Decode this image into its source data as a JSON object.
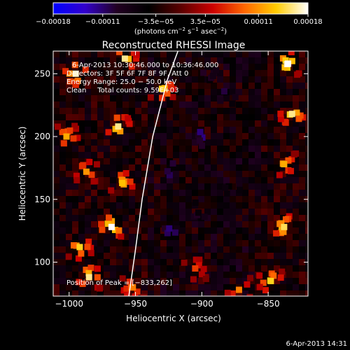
{
  "colorbar": {
    "ticks": [
      {
        "value": -0.00018,
        "label": "−0.00018"
      },
      {
        "value": -0.00011,
        "label": "−0.00011"
      },
      {
        "value": -3.5e-05,
        "label": "−3.5e−05"
      },
      {
        "value": 3.5e-05,
        "label": "3.5e−05"
      },
      {
        "value": 0.00011,
        "label": "0.00011"
      },
      {
        "value": 0.00018,
        "label": "0.00018"
      }
    ],
    "range": [
      -0.00018,
      0.00018
    ],
    "unit_label": "(photons cm",
    "unit_exp1": "−2",
    "unit_mid": " s",
    "unit_exp2": "−1",
    "unit_mid2": " asec",
    "unit_exp3": "−2",
    "unit_end": ")",
    "colors": [
      "#0000ff",
      "#3300cc",
      "#220022",
      "#000000",
      "#5a0000",
      "#cc0000",
      "#ff6600",
      "#ffcc00",
      "#ffffff"
    ]
  },
  "chart_data": {
    "type": "heatmap",
    "title": "Reconstructed RHESSI Image",
    "xlabel": "Heliocentric X (arcsec)",
    "ylabel": "Heliocentric Y (arcsec)",
    "xlim": [
      -1012,
      -820
    ],
    "ylim": [
      73,
      268
    ],
    "x_ticks": [
      {
        "value": -1000,
        "label": "−1000"
      },
      {
        "value": -950,
        "label": "−950"
      },
      {
        "value": -900,
        "label": "−900"
      },
      {
        "value": -850,
        "label": "−850"
      }
    ],
    "y_ticks": [
      {
        "value": 100,
        "label": "100"
      },
      {
        "value": 150,
        "label": "150"
      },
      {
        "value": 200,
        "label": "200"
      },
      {
        "value": 250,
        "label": "250"
      }
    ],
    "annotations": {
      "time_range": "6-Apr-2013 10:30:46.000 to 10:36:46.000",
      "detectors": "Detectors: 3F 5F 6F 7F 8F 9F, Att 0",
      "energy": "Energy Range: 25.0 − 50.0 keV",
      "clean": "Clean     Total counts: 9.59E+03",
      "peak": "Position of Peak = [−833,262]"
    },
    "limb_curve": [
      {
        "x": -955,
        "y": 73
      },
      {
        "x": -950,
        "y": 110
      },
      {
        "x": -945,
        "y": 150
      },
      {
        "x": -937,
        "y": 200
      },
      {
        "x": -926,
        "y": 245
      },
      {
        "x": -918,
        "y": 268
      }
    ],
    "hot_spots": [
      {
        "x": -995,
        "y": 250,
        "v": 0.00017
      },
      {
        "x": -958,
        "y": 262,
        "v": 0.00016
      },
      {
        "x": -930,
        "y": 238,
        "v": 0.00014
      },
      {
        "x": -963,
        "y": 208,
        "v": 0.00016
      },
      {
        "x": -1002,
        "y": 200,
        "v": 0.00012
      },
      {
        "x": -987,
        "y": 172,
        "v": 0.00011
      },
      {
        "x": -960,
        "y": 163,
        "v": 0.00013
      },
      {
        "x": -968,
        "y": 128,
        "v": 0.00018
      },
      {
        "x": -992,
        "y": 112,
        "v": 0.00014
      },
      {
        "x": -985,
        "y": 88,
        "v": 0.00016
      },
      {
        "x": -952,
        "y": 80,
        "v": 0.0001
      },
      {
        "x": -835,
        "y": 258,
        "v": 0.00018
      },
      {
        "x": -832,
        "y": 218,
        "v": 0.00016
      },
      {
        "x": -838,
        "y": 178,
        "v": 0.00012
      },
      {
        "x": -838,
        "y": 128,
        "v": 0.00015
      },
      {
        "x": -848,
        "y": 85,
        "v": 0.00014
      },
      {
        "x": -872,
        "y": 78,
        "v": 0.0001
      },
      {
        "x": -905,
        "y": 95,
        "v": 7e-05
      }
    ],
    "cold_spots": [
      {
        "x": -905,
        "y": 200,
        "v": -9e-05
      },
      {
        "x": -883,
        "y": 235,
        "v": -8e-05
      },
      {
        "x": -922,
        "y": 178,
        "v": -8e-05
      },
      {
        "x": -905,
        "y": 145,
        "v": -7e-05
      },
      {
        "x": -925,
        "y": 130,
        "v": -9e-05
      },
      {
        "x": -880,
        "y": 160,
        "v": -6e-05
      },
      {
        "x": -898,
        "y": 250,
        "v": -7e-05
      }
    ]
  },
  "footer": {
    "timestamp": "6-Apr-2013 14:31"
  }
}
